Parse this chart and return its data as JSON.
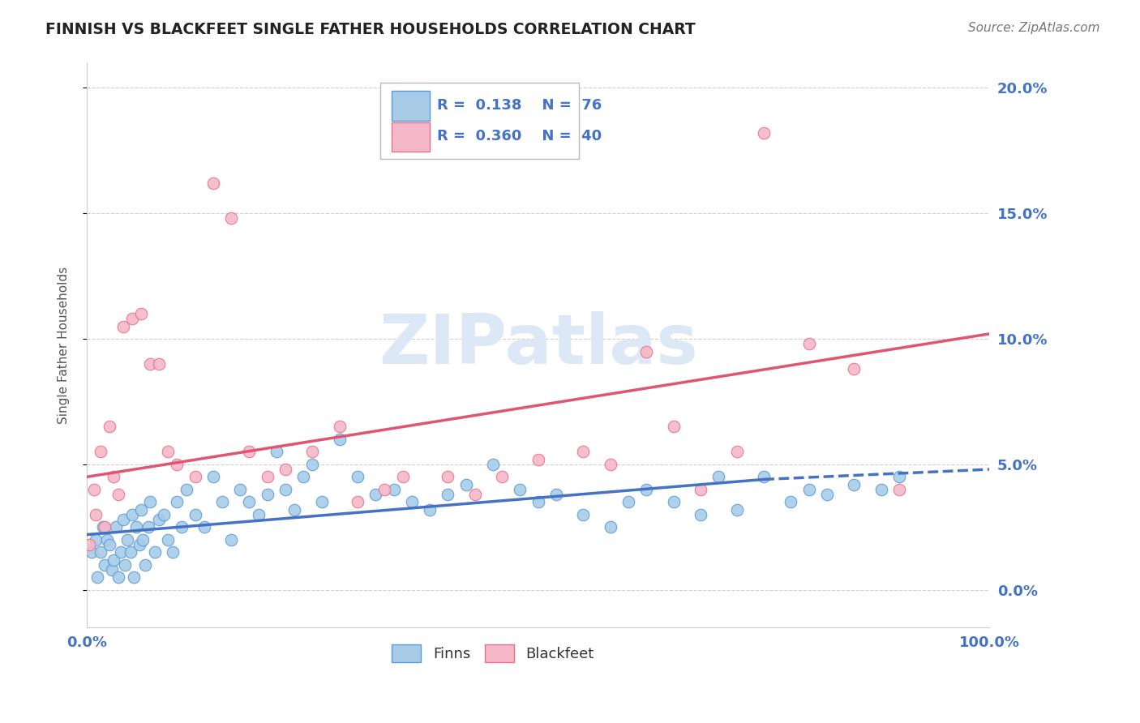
{
  "title": "FINNISH VS BLACKFEET SINGLE FATHER HOUSEHOLDS CORRELATION CHART",
  "source": "Source: ZipAtlas.com",
  "ylabel": "Single Father Households",
  "xlim": [
    0,
    100
  ],
  "ylim": [
    -1.5,
    21
  ],
  "yticks": [
    0,
    5,
    10,
    15,
    20
  ],
  "ytick_labels": [
    "0.0%",
    "5.0%",
    "10.0%",
    "15.0%",
    "20.0%"
  ],
  "xtick_labels": [
    "0.0%",
    "",
    "",
    "",
    "",
    "",
    "",
    "",
    "",
    "",
    "100.0%"
  ],
  "blue_color": "#a8cce8",
  "pink_color": "#f5b8c8",
  "blue_edge_color": "#5b9bd5",
  "pink_edge_color": "#e8708a",
  "blue_line_color": "#4472c4",
  "pink_line_color": "#e05570",
  "tick_label_color": "#4472c4",
  "watermark_text_color": "#dce8f5",
  "grid_color": "#d0d0d0",
  "blue_line": {
    "x0": 0,
    "x1": 75,
    "y0": 2.2,
    "y1": 4.4
  },
  "blue_line_dashed": {
    "x0": 75,
    "x1": 100,
    "y0": 4.4,
    "y1": 4.8
  },
  "pink_line": {
    "x0": 0,
    "x1": 100,
    "y0": 4.5,
    "y1": 10.2
  },
  "finn_x": [
    0.5,
    1.0,
    1.2,
    1.5,
    1.8,
    2.0,
    2.2,
    2.5,
    2.8,
    3.0,
    3.2,
    3.5,
    3.8,
    4.0,
    4.2,
    4.5,
    4.8,
    5.0,
    5.2,
    5.5,
    5.8,
    6.0,
    6.2,
    6.5,
    6.8,
    7.0,
    7.5,
    8.0,
    8.5,
    9.0,
    9.5,
    10.0,
    10.5,
    11.0,
    12.0,
    13.0,
    14.0,
    15.0,
    16.0,
    17.0,
    18.0,
    19.0,
    20.0,
    21.0,
    22.0,
    23.0,
    24.0,
    25.0,
    26.0,
    28.0,
    30.0,
    32.0,
    34.0,
    36.0,
    38.0,
    40.0,
    42.0,
    45.0,
    48.0,
    50.0,
    52.0,
    55.0,
    58.0,
    60.0,
    62.0,
    65.0,
    68.0,
    70.0,
    72.0,
    75.0,
    78.0,
    80.0,
    82.0,
    85.0,
    88.0,
    90.0
  ],
  "finn_y": [
    1.5,
    2.0,
    0.5,
    1.5,
    2.5,
    1.0,
    2.0,
    1.8,
    0.8,
    1.2,
    2.5,
    0.5,
    1.5,
    2.8,
    1.0,
    2.0,
    1.5,
    3.0,
    0.5,
    2.5,
    1.8,
    3.2,
    2.0,
    1.0,
    2.5,
    3.5,
    1.5,
    2.8,
    3.0,
    2.0,
    1.5,
    3.5,
    2.5,
    4.0,
    3.0,
    2.5,
    4.5,
    3.5,
    2.0,
    4.0,
    3.5,
    3.0,
    3.8,
    5.5,
    4.0,
    3.2,
    4.5,
    5.0,
    3.5,
    6.0,
    4.5,
    3.8,
    4.0,
    3.5,
    3.2,
    3.8,
    4.2,
    5.0,
    4.0,
    3.5,
    3.8,
    3.0,
    2.5,
    3.5,
    4.0,
    3.5,
    3.0,
    4.5,
    3.2,
    4.5,
    3.5,
    4.0,
    3.8,
    4.2,
    4.0,
    4.5
  ],
  "black_x": [
    0.3,
    0.8,
    1.0,
    1.5,
    2.0,
    2.5,
    3.0,
    3.5,
    4.0,
    5.0,
    6.0,
    7.0,
    8.0,
    9.0,
    10.0,
    12.0,
    14.0,
    16.0,
    18.0,
    20.0,
    22.0,
    25.0,
    28.0,
    30.0,
    33.0,
    35.0,
    40.0,
    43.0,
    46.0,
    50.0,
    55.0,
    58.0,
    62.0,
    65.0,
    68.0,
    72.0,
    75.0,
    80.0,
    85.0,
    90.0
  ],
  "black_y": [
    1.8,
    4.0,
    3.0,
    5.5,
    2.5,
    6.5,
    4.5,
    3.8,
    10.5,
    10.8,
    11.0,
    9.0,
    9.0,
    5.5,
    5.0,
    4.5,
    16.2,
    14.8,
    5.5,
    4.5,
    4.8,
    5.5,
    6.5,
    3.5,
    4.0,
    4.5,
    4.5,
    3.8,
    4.5,
    5.2,
    5.5,
    5.0,
    9.5,
    6.5,
    4.0,
    5.5,
    18.2,
    9.8,
    8.8,
    4.0
  ]
}
